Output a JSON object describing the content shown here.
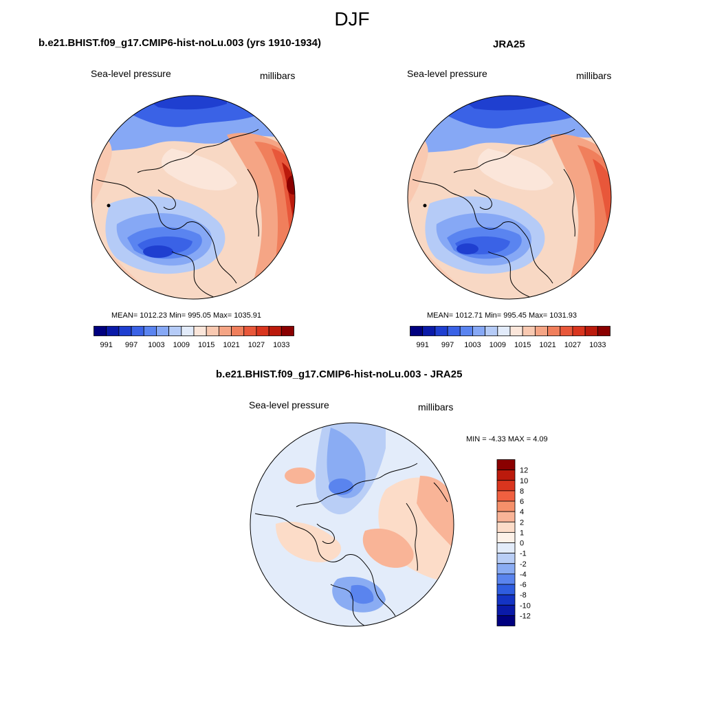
{
  "page": {
    "title": "DJF"
  },
  "panels": [
    {
      "title": "b.e21.BHIST.f09_g17.CMIP6-hist-noLu.003 (yrs 1910-1934)",
      "variable": "Sea-level pressure",
      "units": "millibars",
      "stats": "MEAN= 1012.23  Min= 995.05  Max= 1035.91"
    },
    {
      "title": "JRA25",
      "variable": "Sea-level pressure",
      "units": "millibars",
      "stats": "MEAN= 1012.71  Min= 995.45  Max= 1031.93"
    },
    {
      "title": "b.e21.BHIST.f09_g17.CMIP6-hist-noLu.003 - JRA25",
      "variable": "Sea-level pressure",
      "units": "millibars",
      "stats": "MIN =  -4.33 MAX =   4.09"
    }
  ],
  "colorbar_abs": {
    "tick_labels": [
      "991",
      "997",
      "1003",
      "1009",
      "1015",
      "1021",
      "1027",
      "1033"
    ],
    "colors": [
      "#00007f",
      "#0a1aa8",
      "#1f3fd0",
      "#3a62e6",
      "#5a84f0",
      "#86a8f5",
      "#b5cbf7",
      "#e2ebfa",
      "#fbe6da",
      "#f9c9b1",
      "#f5a585",
      "#f07f5c",
      "#e8573a",
      "#d9351e",
      "#bb1a0c",
      "#8a0000"
    ]
  },
  "colorbar_diff": {
    "tick_labels": [
      "12",
      "10",
      "8",
      "6",
      "4",
      "2",
      "1",
      "0",
      "-1",
      "-2",
      "-4",
      "-6",
      "-8",
      "-10",
      "-12"
    ],
    "colors": [
      "#8a0000",
      "#bb1a0c",
      "#d9351e",
      "#f06040",
      "#f5906a",
      "#f9b497",
      "#fcdcc8",
      "#fdf1e8",
      "#e3ecfa",
      "#b9cef6",
      "#8aacf3",
      "#5a84ee",
      "#2f5de0",
      "#1434c4",
      "#0a1aa8",
      "#00007f"
    ]
  }
}
